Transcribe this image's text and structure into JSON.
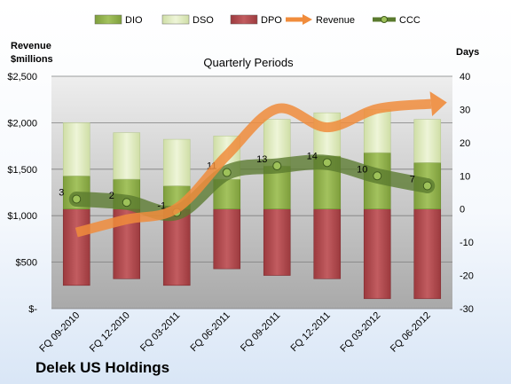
{
  "company": "Delek US Holdings",
  "chart_data": {
    "type": "bar",
    "subtitle": "Quarterly Periods",
    "categories": [
      "FQ 09-2010",
      "FQ 12-2010",
      "FQ 03-2011",
      "FQ 06-2011",
      "FQ 09-2011",
      "FQ 12-2011",
      "FQ 03-2012",
      "FQ 06-2012"
    ],
    "left_axis": {
      "title_line1": "Revenue",
      "title_line2": "$millions",
      "min": 0,
      "max": 2500,
      "ticks": [
        0,
        500,
        1000,
        1500,
        2000,
        2500
      ],
      "tick_labels": [
        "$-",
        "$500",
        "$1,000",
        "$1,500",
        "$2,000",
        "$2,500"
      ]
    },
    "right_axis": {
      "title": "Days",
      "min": -30,
      "max": 40,
      "ticks": [
        -30,
        -20,
        -10,
        0,
        10,
        20,
        30,
        40
      ],
      "tick_labels": [
        "-30",
        "-20",
        "-10",
        "0",
        "10",
        "20",
        "30",
        "40"
      ]
    },
    "bar_series": [
      {
        "name": "DIO",
        "stack": "positive",
        "values": [
          10,
          9,
          7,
          9,
          13,
          16,
          17,
          14
        ],
        "color": "#8fb04a"
      },
      {
        "name": "DSO",
        "stack": "positive",
        "values": [
          16,
          14,
          14,
          13,
          14,
          13,
          13,
          13
        ],
        "color": "#dde9bf"
      },
      {
        "name": "DPO",
        "stack": "negative",
        "values": [
          23,
          21,
          23,
          18,
          20,
          21,
          27,
          27
        ],
        "color": "#b0464a"
      }
    ],
    "line_series": [
      {
        "name": "Revenue",
        "axis": "left",
        "values": [
          820,
          960,
          1080,
          1650,
          2150,
          1950,
          2150,
          2200
        ],
        "color": "#f08c3c"
      },
      {
        "name": "CCC",
        "axis": "right",
        "values": [
          3,
          2,
          -1,
          11,
          13,
          14,
          10,
          7
        ],
        "labels": [
          "3",
          "2",
          "-1",
          "11",
          "13",
          "14",
          "10",
          "7"
        ],
        "color": "#5a7a2e"
      }
    ],
    "legend": {
      "position": "top",
      "items": [
        "DIO",
        "DSO",
        "DPO",
        "Revenue",
        "CCC"
      ]
    },
    "grid": true
  }
}
